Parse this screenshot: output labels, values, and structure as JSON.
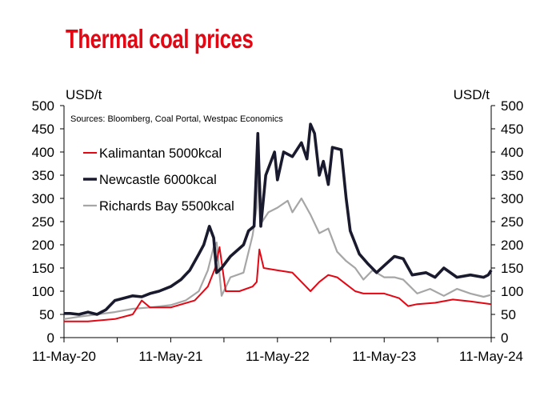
{
  "title": "Thermal coal prices",
  "title_color": "#e30613",
  "chart_data": {
    "type": "line",
    "ylabel_left": "USD/t",
    "ylabel_right": "USD/t",
    "source": "Sources: Bloomberg, Coal Portal, Westpac Economics",
    "ylim": [
      0,
      500
    ],
    "yticks": [
      0,
      50,
      100,
      150,
      200,
      250,
      300,
      350,
      400,
      450,
      500
    ],
    "xlim": [
      "2020-05-11",
      "2024-05-11"
    ],
    "xticks": [
      {
        "date": "2020-05-11",
        "label": "11-May-20"
      },
      {
        "date": "2021-05-11",
        "label": "11-May-21"
      },
      {
        "date": "2022-05-11",
        "label": "11-May-22"
      },
      {
        "date": "2023-05-11",
        "label": "11-May-23"
      },
      {
        "date": "2024-05-11",
        "label": "11-May-24"
      }
    ],
    "legend_placement": "upper-left",
    "series": [
      {
        "name": "Richards Bay 5500kcal",
        "color": "#a6a6a6",
        "x": [
          "2020-05-11",
          "2020-07-01",
          "2020-09-01",
          "2020-11-01",
          "2021-01-01",
          "2021-03-01",
          "2021-05-11",
          "2021-07-01",
          "2021-08-15",
          "2021-09-15",
          "2021-10-05",
          "2021-10-15",
          "2021-11-01",
          "2021-12-01",
          "2022-01-15",
          "2022-02-15",
          "2022-03-01",
          "2022-03-08",
          "2022-03-20",
          "2022-04-10",
          "2022-05-11",
          "2022-06-15",
          "2022-07-01",
          "2022-08-01",
          "2022-09-01",
          "2022-10-01",
          "2022-11-01",
          "2022-12-01",
          "2023-01-01",
          "2023-02-01",
          "2023-03-01",
          "2023-04-01",
          "2023-05-11",
          "2023-06-15",
          "2023-07-15",
          "2023-09-01",
          "2023-10-15",
          "2023-12-01",
          "2024-01-15",
          "2024-03-01",
          "2024-04-15",
          "2024-05-11"
        ],
        "values": [
          40,
          45,
          50,
          55,
          62,
          65,
          70,
          80,
          100,
          145,
          195,
          205,
          90,
          130,
          140,
          220,
          280,
          395,
          250,
          270,
          280,
          295,
          270,
          300,
          265,
          225,
          235,
          185,
          165,
          150,
          125,
          145,
          130,
          130,
          125,
          95,
          105,
          90,
          105,
          95,
          88,
          92
        ]
      },
      {
        "name": "Kalimantan 5000kcal",
        "color": "#e30613",
        "x": [
          "2020-05-11",
          "2020-08-01",
          "2020-11-01",
          "2021-01-01",
          "2021-02-01",
          "2021-03-01",
          "2021-05-11",
          "2021-08-01",
          "2021-09-15",
          "2021-10-10",
          "2021-10-25",
          "2021-11-15",
          "2022-01-01",
          "2022-02-15",
          "2022-03-01",
          "2022-03-10",
          "2022-03-25",
          "2022-05-11",
          "2022-07-01",
          "2022-09-01",
          "2022-10-01",
          "2022-11-01",
          "2022-12-01",
          "2023-01-01",
          "2023-02-01",
          "2023-03-01",
          "2023-05-11",
          "2023-07-01",
          "2023-08-01",
          "2023-09-01",
          "2023-11-01",
          "2024-01-01",
          "2024-03-01",
          "2024-05-11"
        ],
        "values": [
          35,
          35,
          40,
          50,
          80,
          65,
          65,
          80,
          110,
          150,
          195,
          100,
          100,
          110,
          120,
          190,
          150,
          145,
          140,
          100,
          120,
          135,
          130,
          115,
          100,
          95,
          95,
          85,
          68,
          72,
          75,
          82,
          78,
          72
        ]
      },
      {
        "name": "Newcastle 6000kcal",
        "color": "#1a1a2e",
        "x": [
          "2020-05-11",
          "2020-06-01",
          "2020-07-01",
          "2020-08-01",
          "2020-09-01",
          "2020-10-01",
          "2020-11-01",
          "2020-12-01",
          "2021-01-01",
          "2021-02-01",
          "2021-03-01",
          "2021-04-01",
          "2021-05-11",
          "2021-06-15",
          "2021-07-15",
          "2021-08-15",
          "2021-09-01",
          "2021-09-20",
          "2021-10-05",
          "2021-10-15",
          "2021-11-01",
          "2021-12-01",
          "2022-01-15",
          "2022-02-01",
          "2022-02-20",
          "2022-03-05",
          "2022-03-15",
          "2022-04-01",
          "2022-05-01",
          "2022-05-11",
          "2022-06-01",
          "2022-07-01",
          "2022-08-01",
          "2022-08-20",
          "2022-09-01",
          "2022-09-15",
          "2022-10-01",
          "2022-10-15",
          "2022-11-01",
          "2022-11-15",
          "2022-12-15",
          "2023-01-01",
          "2023-01-15",
          "2023-02-15",
          "2023-03-15",
          "2023-04-15",
          "2023-05-11",
          "2023-06-15",
          "2023-07-15",
          "2023-08-15",
          "2023-10-01",
          "2023-11-01",
          "2023-12-01",
          "2024-01-15",
          "2024-03-01",
          "2024-04-15",
          "2024-05-01",
          "2024-05-11"
        ],
        "values": [
          52,
          52,
          50,
          55,
          50,
          60,
          80,
          85,
          90,
          88,
          95,
          100,
          110,
          125,
          145,
          180,
          200,
          240,
          215,
          140,
          150,
          175,
          200,
          230,
          240,
          440,
          240,
          350,
          400,
          340,
          400,
          390,
          420,
          385,
          460,
          440,
          350,
          380,
          330,
          410,
          405,
          300,
          230,
          180,
          160,
          140,
          155,
          175,
          170,
          135,
          140,
          130,
          150,
          130,
          135,
          130,
          135,
          145
        ]
      }
    ]
  }
}
